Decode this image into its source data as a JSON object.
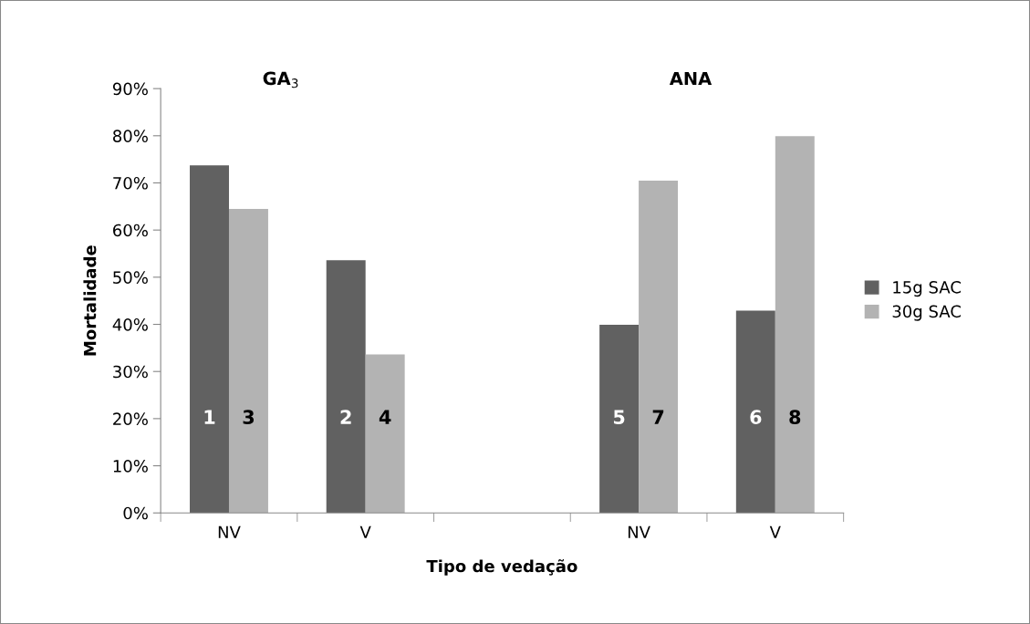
{
  "chart_data": {
    "type": "bar",
    "xlabel": "Tipo de vedação",
    "ylabel": "Mortalidade",
    "categories": [
      "NV",
      "V",
      null,
      "NV",
      "V"
    ],
    "series": [
      {
        "name": "15g SAC",
        "color": "#616161",
        "values": [
          73.7,
          53.6,
          null,
          39.9,
          42.9
        ]
      },
      {
        "name": "30g SAC",
        "color": "#b3b3b3",
        "values": [
          64.5,
          33.6,
          null,
          70.5,
          79.9
        ]
      }
    ],
    "annotations": [
      "GA$_{3}$",
      "ANA",
      "1",
      "2",
      "5",
      "6",
      "3",
      "4",
      "7",
      "8"
    ],
    "ylim": [
      0,
      90
    ],
    "yticks": [
      {
        "value": 0,
        "label": "0%"
      },
      {
        "value": 10,
        "label": "10%"
      },
      {
        "value": 20,
        "label": "20%"
      },
      {
        "value": 30,
        "label": "30%"
      },
      {
        "value": 40,
        "label": "40%"
      },
      {
        "value": 50,
        "label": "50%"
      },
      {
        "value": 60,
        "label": "60%"
      },
      {
        "value": 70,
        "label": "70%"
      },
      {
        "value": 80,
        "label": "80%"
      },
      {
        "value": 90,
        "label": "90%"
      }
    ],
    "grid": false,
    "legend": "right"
  }
}
